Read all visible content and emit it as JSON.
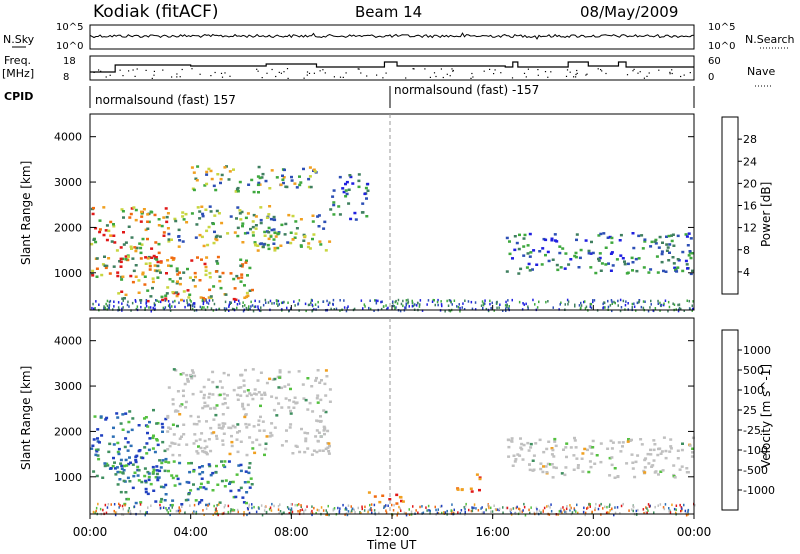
{
  "header": {
    "station": "Kodiak (fitACF)",
    "beam": "Beam 14",
    "date": "08/May/2009"
  },
  "strips": {
    "nsky_label": "N.Sky",
    "nsearch_label": "N.Search",
    "freq_label_line1": "Freq.",
    "freq_label_line2": "[MHz]",
    "nave_label": "Nave",
    "cpid_label": "CPID",
    "noise_ticks_left": [
      "10^5",
      "10^0"
    ],
    "noise_ticks_right": [
      "10^5",
      "10^0"
    ],
    "freq_ticks": [
      "18",
      "8"
    ],
    "nave_ticks": [
      "60",
      "0"
    ],
    "cpid_segments": [
      {
        "text": "normalsound (fast) 157"
      },
      {
        "text": "normalsound (fast) -157"
      }
    ]
  },
  "chart_data": [
    {
      "type": "heatmap",
      "panel": "power",
      "ylabel": "Slant Range [km]",
      "yticks": [
        1000,
        2000,
        3000,
        4000
      ],
      "ylim": [
        180,
        4500
      ],
      "xlim": [
        0,
        24
      ],
      "colorbar": {
        "label": "Power [dB]",
        "ticks": [
          "4",
          "8",
          "12",
          "16",
          "20",
          "24",
          "28"
        ],
        "colors": [
          "#1f1fe0",
          "#2d4fb5",
          "#3f7f5f",
          "#3ea83e",
          "#c8d640",
          "#f0a020",
          "#f06a10",
          "#e01818"
        ]
      },
      "echo_regions": [
        {
          "t0": 0.0,
          "t1": 3.0,
          "r0": 900,
          "r1": 2500,
          "level": "high"
        },
        {
          "t0": 1.0,
          "t1": 6.5,
          "r0": 400,
          "r1": 1400,
          "level": "high"
        },
        {
          "t0": 3.0,
          "t1": 7.5,
          "r0": 1600,
          "r1": 2500,
          "level": "medium"
        },
        {
          "t0": 4.0,
          "t1": 9.0,
          "r0": 2800,
          "r1": 3400,
          "level": "medium"
        },
        {
          "t0": 6.5,
          "t1": 9.5,
          "r0": 1500,
          "r1": 2300,
          "level": "medium"
        },
        {
          "t0": 9.5,
          "t1": 11.0,
          "r0": 2200,
          "r1": 3200,
          "level": "low"
        },
        {
          "t0": 16.5,
          "t1": 24.0,
          "r0": 1000,
          "r1": 1900,
          "level": "low"
        }
      ]
    },
    {
      "type": "heatmap",
      "panel": "velocity",
      "ylabel": "Slant Range [km]",
      "xlabel": "Time UT",
      "yticks": [
        1000,
        2000,
        3000,
        4000
      ],
      "ylim": [
        180,
        4500
      ],
      "xlim": [
        0,
        24
      ],
      "xticks": [
        "00:00",
        "04:00",
        "08:00",
        "12:00",
        "16:00",
        "20:00",
        "00:00"
      ],
      "colorbar": {
        "label": "Velocity [m s^-1]",
        "ticks": [
          "1000",
          "500",
          "100",
          "25",
          "-25",
          "-100",
          "-500",
          "-1000"
        ],
        "colors": [
          "#2040c0",
          "#2d6fb5",
          "#3f8f5f",
          "#55c040",
          "#c0c0c0",
          "#c0c0c0",
          "#f0a020",
          "#f06a10",
          "#e01818"
        ]
      },
      "echo_regions": [
        {
          "t0": 0.0,
          "t1": 3.0,
          "r0": 900,
          "r1": 2500,
          "velocity": "positive"
        },
        {
          "t0": 1.0,
          "t1": 6.5,
          "r0": 400,
          "r1": 1400,
          "velocity": "positive"
        },
        {
          "t0": 3.0,
          "t1": 9.5,
          "r0": 1500,
          "r1": 3400,
          "velocity": "near-zero"
        },
        {
          "t0": 11.0,
          "t1": 12.5,
          "r0": 400,
          "r1": 700,
          "velocity": "negative"
        },
        {
          "t0": 14.5,
          "t1": 15.5,
          "r0": 700,
          "r1": 1100,
          "velocity": "negative"
        },
        {
          "t0": 16.5,
          "t1": 24.0,
          "r0": 1000,
          "r1": 1900,
          "velocity": "near-zero"
        }
      ]
    }
  ]
}
